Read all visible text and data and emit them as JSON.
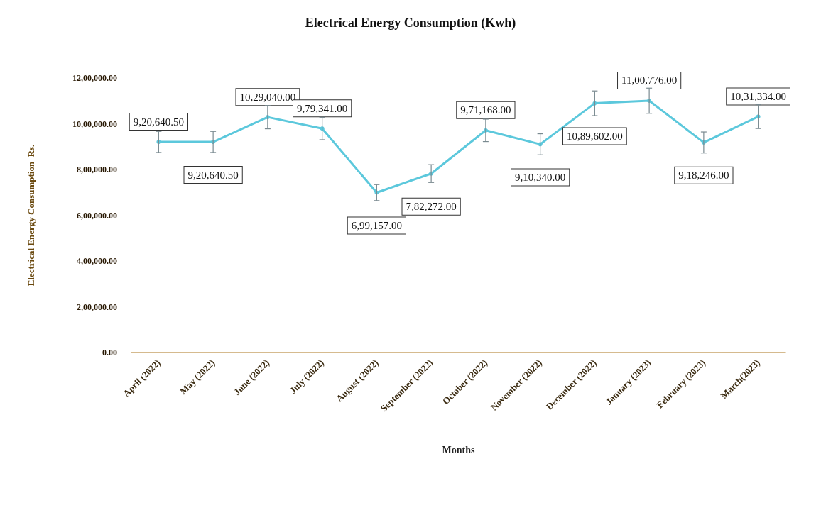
{
  "chart_data": {
    "type": "line",
    "title": "Electrical Energy Consumption (Kwh)",
    "xlabel": "Months",
    "ylabel": "Electrical Energy Consumption  Rs.",
    "categories": [
      "April (2022)",
      "May (2022)",
      "June (2022)",
      "July (2022)",
      "August (2022)",
      "September (2022)",
      "October (2022)",
      "November (2022)",
      "December (2022)",
      "January (2023)",
      "February (2023)",
      "March(2023)"
    ],
    "series": [
      {
        "color": "#5cc8dc",
        "values": [
          920640.5,
          920640.5,
          1029040,
          979341,
          699157,
          782272,
          971168,
          910340,
          1089602,
          1100776,
          918246,
          1031334
        ],
        "errors": [
          46000,
          46000,
          51000,
          49000,
          35000,
          39000,
          49000,
          46000,
          54000,
          55000,
          46000,
          52000
        ],
        "value_labels": [
          "9,20,640.50",
          "9,20,640.50",
          "10,29,040.00",
          "9,79,341.00",
          "6,99,157.00",
          "7,82,272.00",
          "9,71,168.00",
          "9,10,340.00",
          "10,89,602.00",
          "11,00,776.00",
          "9,18,246.00",
          "10,31,334.00"
        ]
      }
    ],
    "ylim": [
      0,
      1200000
    ],
    "yticks": [
      {
        "value": 0,
        "label": "0.00"
      },
      {
        "value": 200000,
        "label": "2,00,000.00"
      },
      {
        "value": 400000,
        "label": "4,00,000.00"
      },
      {
        "value": 600000,
        "label": "6,00,000.00"
      },
      {
        "value": 800000,
        "label": "8,00,000.00"
      },
      {
        "value": 1000000,
        "label": "10,00,000.00"
      },
      {
        "value": 1200000,
        "label": "12,00,000.00"
      }
    ],
    "grid": false,
    "marker": "circle",
    "line_style": "solid"
  }
}
